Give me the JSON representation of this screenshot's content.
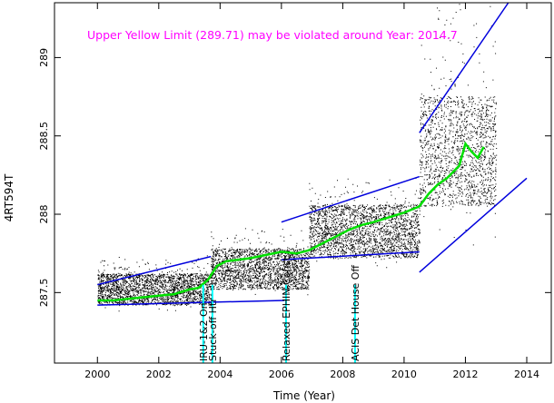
{
  "chart_data": {
    "type": "scatter",
    "annotation": "Upper Yellow  Limit (289.71) may be violated around Year: 2014.7",
    "xlabel": "Time (Year)",
    "ylabel": "4RT594T",
    "xlim": [
      1998.6,
      2014.8
    ],
    "ylim": [
      287.05,
      289.35
    ],
    "xticks": [
      2000,
      2002,
      2004,
      2006,
      2008,
      2010,
      2012,
      2014
    ],
    "xtick_labels": [
      "2000",
      "2002",
      "2004",
      "2006",
      "2008",
      "2010",
      "2012",
      "2014"
    ],
    "yticks": [
      287.5,
      288,
      288.5,
      289
    ],
    "ytick_labels": [
      "287.5",
      "288",
      "288.5",
      "289"
    ],
    "colors": {
      "data": "#000000",
      "trend": "#00e000",
      "envelope": "#0000dd",
      "events": "#00ffff",
      "annotation": "#ff00ff"
    },
    "events": [
      {
        "x": 2003.45,
        "label": "IRU-1&2 On"
      },
      {
        "x": 2003.75,
        "label": "Stuck-off Htr"
      },
      {
        "x": 2006.15,
        "label": "Relaxed EPHIN Const."
      },
      {
        "x": 2008.4,
        "label": "ACIS Det House Off"
      }
    ],
    "density_bands": [
      {
        "x0": 2000.0,
        "x1": 2003.7,
        "ymin": 287.42,
        "ymax": 287.62,
        "spread": 0.06
      },
      {
        "x0": 2003.7,
        "x1": 2006.9,
        "ymin": 287.52,
        "ymax": 287.78,
        "spread": 0.07
      },
      {
        "x0": 2006.9,
        "x1": 2010.5,
        "ymin": 287.72,
        "ymax": 288.06,
        "spread": 0.09
      },
      {
        "x0": 2010.5,
        "x1": 2013.0,
        "ymin": 288.05,
        "ymax": 288.75,
        "spread": 0.35
      }
    ],
    "trend_line": {
      "x": [
        2000.0,
        2000.5,
        2001.0,
        2001.5,
        2002.0,
        2002.5,
        2003.0,
        2003.3,
        2003.6,
        2003.9,
        2004.2,
        2004.6,
        2005.0,
        2005.5,
        2006.0,
        2006.5,
        2006.9,
        2007.2,
        2007.5,
        2007.8,
        2008.2,
        2008.6,
        2009.0,
        2009.5,
        2010.0,
        2010.5,
        2010.8,
        2011.1,
        2011.4,
        2011.6,
        2011.8,
        2012.0,
        2012.2,
        2012.4,
        2012.6
      ],
      "y": [
        287.45,
        287.45,
        287.46,
        287.47,
        287.48,
        287.49,
        287.52,
        287.53,
        287.58,
        287.67,
        287.7,
        287.71,
        287.72,
        287.74,
        287.76,
        287.75,
        287.77,
        287.8,
        287.83,
        287.86,
        287.9,
        287.93,
        287.95,
        287.98,
        288.01,
        288.05,
        288.13,
        288.19,
        288.23,
        288.27,
        288.31,
        288.45,
        288.4,
        288.36,
        288.43
      ]
    },
    "envelope_segments": [
      {
        "x": [
          2000.0,
          2003.7
        ],
        "y": [
          287.55,
          287.73
        ]
      },
      {
        "x": [
          2000.0,
          2006.1
        ],
        "y": [
          287.42,
          287.45
        ]
      },
      {
        "x": [
          2006.0,
          2010.5
        ],
        "y": [
          287.95,
          288.24
        ]
      },
      {
        "x": [
          2006.0,
          2010.5
        ],
        "y": [
          287.71,
          287.76
        ]
      },
      {
        "x": [
          2010.5,
          2013.4
        ],
        "y": [
          288.52,
          289.35
        ]
      },
      {
        "x": [
          2010.5,
          2014.0
        ],
        "y": [
          287.63,
          288.23
        ]
      }
    ]
  }
}
